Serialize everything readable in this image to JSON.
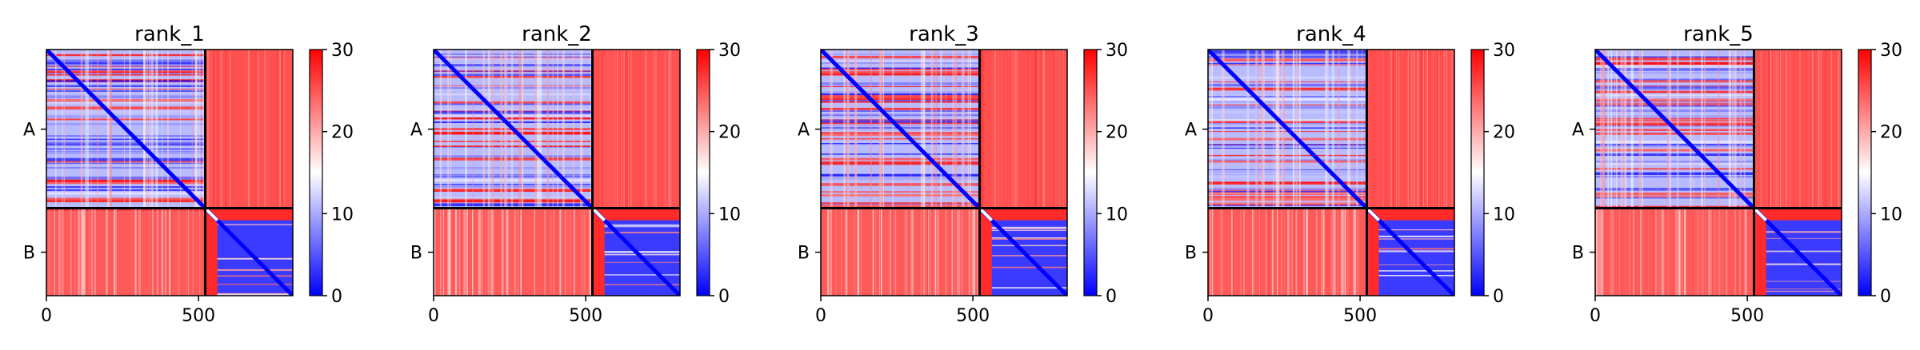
{
  "chart_data": {
    "type": "heatmap",
    "panels": [
      {
        "title": "rank_1"
      },
      {
        "title": "rank_2"
      },
      {
        "title": "rank_3"
      },
      {
        "title": "rank_4"
      },
      {
        "title": "rank_5"
      }
    ],
    "x_range": [
      0,
      810
    ],
    "x_ticks": [
      0,
      500
    ],
    "y_ticks": [
      {
        "label": "A",
        "at": 262
      },
      {
        "label": "B",
        "at": 667
      }
    ],
    "chain_boundary": 522,
    "chain_lengths": {
      "A": 522,
      "B": 288
    },
    "colorbar": {
      "min": 0,
      "max": 30,
      "ticks": [
        0,
        10,
        20,
        30
      ],
      "colors": [
        "#0000ff",
        "#ffffff",
        "#ff0000"
      ]
    },
    "gridlines": false
  }
}
